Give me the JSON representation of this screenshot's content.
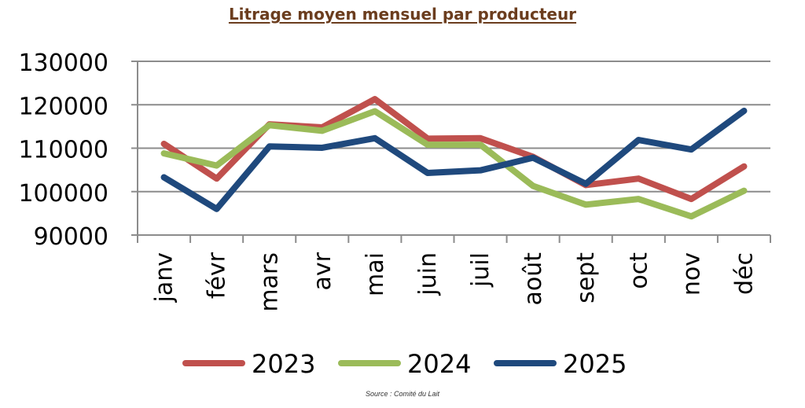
{
  "chart_data": {
    "type": "line",
    "title": "Litrage moyen mensuel par producteur",
    "categories": [
      "janv",
      "févr",
      "mars",
      "avr",
      "mai",
      "juin",
      "juil",
      "août",
      "sept",
      "oct",
      "nov",
      "déc"
    ],
    "ylim": [
      90000,
      130000
    ],
    "yticks": [
      "130000",
      "120000",
      "110000",
      "100000",
      "90000"
    ],
    "yticks_values": [
      130000,
      120000,
      110000,
      100000,
      90000
    ],
    "legend_position": "bottom",
    "series": [
      {
        "name": "2023",
        "color": "#c0504d",
        "values": [
          111000,
          103000,
          115500,
          114800,
          121300,
          112200,
          112300,
          108000,
          101500,
          103000,
          98300,
          105800
        ]
      },
      {
        "name": "2024",
        "color": "#9bbb59",
        "values": [
          108800,
          106000,
          115300,
          114000,
          118500,
          110800,
          110800,
          101300,
          97000,
          98300,
          94300,
          100200
        ]
      },
      {
        "name": "2025",
        "color": "#1f497d",
        "values": [
          103300,
          96000,
          110400,
          110100,
          112300,
          104300,
          104900,
          107800,
          101800,
          111900,
          109700,
          118600
        ]
      }
    ]
  },
  "source": "Source : Comité du Lait"
}
